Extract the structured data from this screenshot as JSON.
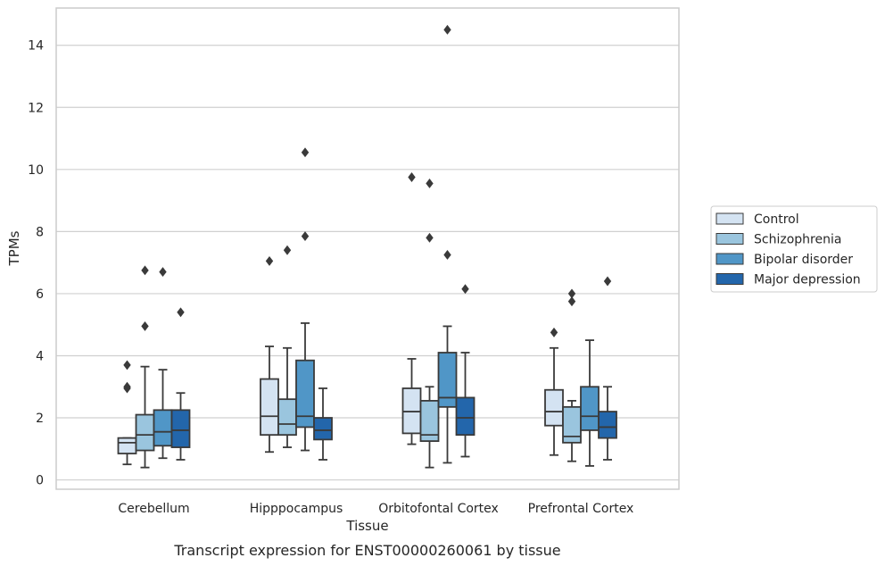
{
  "chart_data": {
    "type": "box",
    "title": "",
    "caption": "Transcript expression for ENST00000260061 by tissue",
    "xlabel": "Tissue",
    "ylabel": "TPMs",
    "ylim": [
      -0.3,
      15.2
    ],
    "yticks": [
      0,
      2,
      4,
      6,
      8,
      10,
      12,
      14
    ],
    "grid": "horizontal",
    "legend_position": "right",
    "categories": [
      "Cerebellum",
      "Hipppocampus",
      "Orbitofontal Cortex",
      "Prefrontal Cortex"
    ],
    "colors": {
      "Control": "#d4e3f2",
      "Schizophrenia": "#9ac5de",
      "Bipolar disorder": "#5096c7",
      "Major depression": "#2366ab",
      "outline": "#3a3a3a",
      "grid": "#d0d0d0"
    },
    "series": [
      {
        "name": "Control",
        "boxes": [
          {
            "whisker_low": 0.5,
            "q1": 0.85,
            "median": 1.2,
            "q3": 1.35,
            "whisker_high": 1.35,
            "outliers": [
              2.95,
              3.0,
              3.7
            ]
          },
          {
            "whisker_low": 0.9,
            "q1": 1.45,
            "median": 2.05,
            "q3": 3.25,
            "whisker_high": 4.3,
            "outliers": [
              7.05
            ]
          },
          {
            "whisker_low": 1.15,
            "q1": 1.5,
            "median": 2.2,
            "q3": 2.95,
            "whisker_high": 3.9,
            "outliers": [
              9.75
            ]
          },
          {
            "whisker_low": 0.8,
            "q1": 1.75,
            "median": 2.2,
            "q3": 2.9,
            "whisker_high": 4.25,
            "outliers": [
              4.75
            ]
          }
        ]
      },
      {
        "name": "Schizophrenia",
        "boxes": [
          {
            "whisker_low": 0.4,
            "q1": 0.95,
            "median": 1.45,
            "q3": 2.1,
            "whisker_high": 3.65,
            "outliers": [
              4.95,
              6.75
            ]
          },
          {
            "whisker_low": 1.05,
            "q1": 1.45,
            "median": 1.8,
            "q3": 2.6,
            "whisker_high": 4.25,
            "outliers": [
              7.4
            ]
          },
          {
            "whisker_low": 0.4,
            "q1": 1.25,
            "median": 1.45,
            "q3": 2.55,
            "whisker_high": 3.0,
            "outliers": [
              7.8,
              9.55
            ]
          },
          {
            "whisker_low": 0.6,
            "q1": 1.2,
            "median": 1.4,
            "q3": 2.35,
            "whisker_high": 2.55,
            "outliers": [
              5.75,
              6.0
            ]
          }
        ]
      },
      {
        "name": "Bipolar disorder",
        "boxes": [
          {
            "whisker_low": 0.7,
            "q1": 1.1,
            "median": 1.55,
            "q3": 2.25,
            "whisker_high": 3.55,
            "outliers": [
              6.7
            ]
          },
          {
            "whisker_low": 0.95,
            "q1": 1.7,
            "median": 2.05,
            "q3": 3.85,
            "whisker_high": 5.05,
            "outliers": [
              7.85,
              10.55
            ]
          },
          {
            "whisker_low": 0.55,
            "q1": 2.35,
            "median": 2.65,
            "q3": 4.1,
            "whisker_high": 4.95,
            "outliers": [
              7.25,
              14.5
            ]
          },
          {
            "whisker_low": 0.45,
            "q1": 1.6,
            "median": 2.05,
            "q3": 3.0,
            "whisker_high": 4.5,
            "outliers": []
          }
        ]
      },
      {
        "name": "Major depression",
        "boxes": [
          {
            "whisker_low": 0.65,
            "q1": 1.05,
            "median": 1.6,
            "q3": 2.25,
            "whisker_high": 2.8,
            "outliers": [
              5.4
            ]
          },
          {
            "whisker_low": 0.65,
            "q1": 1.3,
            "median": 1.6,
            "q3": 2.0,
            "whisker_high": 2.95,
            "outliers": []
          },
          {
            "whisker_low": 0.75,
            "q1": 1.45,
            "median": 2.0,
            "q3": 2.65,
            "whisker_high": 4.1,
            "outliers": [
              6.15
            ]
          },
          {
            "whisker_low": 0.65,
            "q1": 1.35,
            "median": 1.7,
            "q3": 2.2,
            "whisker_high": 3.0,
            "outliers": [
              6.4
            ]
          }
        ]
      }
    ]
  }
}
